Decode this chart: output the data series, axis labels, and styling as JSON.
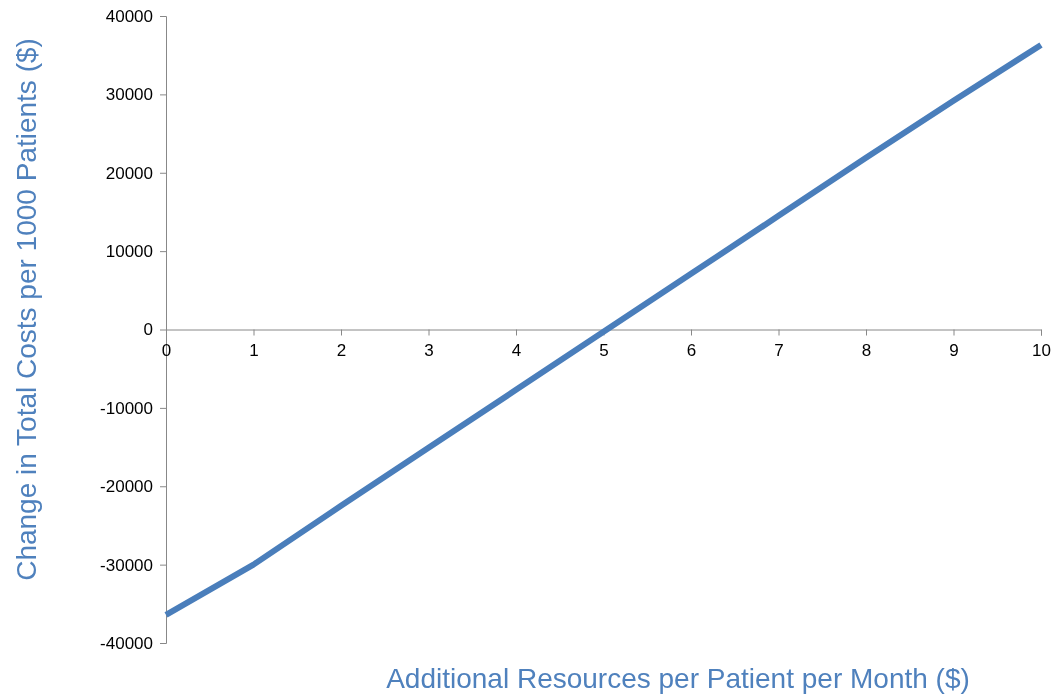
{
  "chart_data": {
    "type": "line",
    "xlabel": "Additional Resources per Patient per Month ($)",
    "ylabel": "Change in Total Costs per 1000 Patients ($)",
    "x": [
      0,
      1,
      2,
      3,
      4,
      5,
      6,
      7,
      8,
      9,
      10
    ],
    "series": [
      {
        "color": "#4a7ebb",
        "values": [
          -36400,
          -30000,
          -22500,
          -15100,
          -7700,
          -300,
          7100,
          14500,
          21900,
          29200,
          36300
        ]
      }
    ],
    "xlim": [
      0,
      10
    ],
    "xticks": [
      0,
      1,
      2,
      3,
      4,
      5,
      6,
      7,
      8,
      9,
      10
    ],
    "ylim": [
      -40000,
      40000
    ],
    "yticks": [
      -40000,
      -30000,
      -20000,
      -10000,
      0,
      10000,
      20000,
      30000,
      40000
    ],
    "marker": "none",
    "line_style": "solid"
  }
}
